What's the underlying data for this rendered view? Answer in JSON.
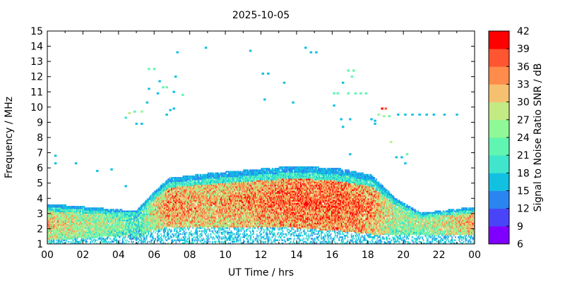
{
  "chart_data": {
    "type": "heatmap",
    "title": "2025-10-05",
    "xlabel": "UT Time / hrs",
    "ylabel": "Frequency / MHz",
    "xlim": [
      0,
      24
    ],
    "ylim": [
      1,
      15
    ],
    "x_ticks": [
      "00",
      "02",
      "04",
      "06",
      "08",
      "10",
      "12",
      "14",
      "16",
      "18",
      "20",
      "22",
      "00"
    ],
    "y_ticks": [
      "1",
      "2",
      "3",
      "4",
      "5",
      "6",
      "7",
      "8",
      "9",
      "10",
      "11",
      "12",
      "13",
      "14",
      "15"
    ],
    "colorbar": {
      "label": "Signal to Noise Ratio SNR / dB",
      "range": [
        6,
        42
      ],
      "ticks": [
        "6",
        "9",
        "12",
        "15",
        "18",
        "21",
        "24",
        "27",
        "30",
        "33",
        "36",
        "39",
        "42"
      ],
      "colors": [
        "#8000ff",
        "#4a44f9",
        "#2a85f0",
        "#12c0e2",
        "#3fe6cc",
        "#60f5b0",
        "#8ef996",
        "#c4ea84",
        "#f5c070",
        "#ff8c4a",
        "#ff5530",
        "#ff0000"
      ]
    },
    "band": {
      "description_hours": [
        0,
        4.2,
        5,
        5.8,
        6.8,
        9,
        12,
        14,
        16.5,
        18.2,
        19.5,
        21,
        24
      ],
      "upper_edge_mhz": [
        3.6,
        3.2,
        3.2,
        4.2,
        5.3,
        5.6,
        5.9,
        6.1,
        5.9,
        5.5,
        4.0,
        3.0,
        3.4
      ],
      "lower_edge_mhz": [
        1.2,
        1.5,
        1.2,
        1.8,
        2.1,
        2.0,
        2.1,
        2.0,
        1.8,
        1.6,
        1.6,
        1.6,
        1.5
      ],
      "peak_snr_db": [
        34,
        28,
        24,
        32,
        38,
        36,
        38,
        40,
        40,
        38,
        30,
        30,
        36
      ]
    },
    "scatter_points": [
      {
        "x": 0.45,
        "y": 6.8,
        "snr": 16
      },
      {
        "x": 0.45,
        "y": 6.3,
        "snr": 15
      },
      {
        "x": 1.6,
        "y": 6.3,
        "snr": 15
      },
      {
        "x": 2.8,
        "y": 5.8,
        "snr": 15
      },
      {
        "x": 3.6,
        "y": 5.9,
        "snr": 15
      },
      {
        "x": 4.4,
        "y": 4.8,
        "snr": 15
      },
      {
        "x": 4.4,
        "y": 9.3,
        "snr": 20
      },
      {
        "x": 4.6,
        "y": 9.6,
        "snr": 27
      },
      {
        "x": 4.9,
        "y": 9.7,
        "snr": 22
      },
      {
        "x": 5.3,
        "y": 9.7,
        "snr": 24
      },
      {
        "x": 5.0,
        "y": 8.9,
        "snr": 15
      },
      {
        "x": 5.3,
        "y": 8.9,
        "snr": 15
      },
      {
        "x": 5.6,
        "y": 10.3,
        "snr": 15
      },
      {
        "x": 5.7,
        "y": 11.2,
        "snr": 15
      },
      {
        "x": 5.7,
        "y": 12.5,
        "snr": 22
      },
      {
        "x": 6.0,
        "y": 12.5,
        "snr": 22
      },
      {
        "x": 6.2,
        "y": 10.9,
        "snr": 15
      },
      {
        "x": 6.3,
        "y": 11.7,
        "snr": 15
      },
      {
        "x": 6.5,
        "y": 11.3,
        "snr": 22
      },
      {
        "x": 6.7,
        "y": 11.3,
        "snr": 22
      },
      {
        "x": 6.7,
        "y": 9.5,
        "snr": 15
      },
      {
        "x": 6.9,
        "y": 9.8,
        "snr": 15
      },
      {
        "x": 7.1,
        "y": 9.9,
        "snr": 15
      },
      {
        "x": 7.2,
        "y": 12.0,
        "snr": 15
      },
      {
        "x": 7.1,
        "y": 11.0,
        "snr": 15
      },
      {
        "x": 7.3,
        "y": 13.6,
        "snr": 15
      },
      {
        "x": 7.6,
        "y": 10.8,
        "snr": 22
      },
      {
        "x": 8.9,
        "y": 13.9,
        "snr": 15
      },
      {
        "x": 11.4,
        "y": 13.7,
        "snr": 15
      },
      {
        "x": 12.1,
        "y": 12.2,
        "snr": 15
      },
      {
        "x": 12.4,
        "y": 12.2,
        "snr": 15
      },
      {
        "x": 12.2,
        "y": 10.5,
        "snr": 15
      },
      {
        "x": 13.3,
        "y": 11.6,
        "snr": 15
      },
      {
        "x": 13.8,
        "y": 10.3,
        "snr": 15
      },
      {
        "x": 14.5,
        "y": 13.9,
        "snr": 15
      },
      {
        "x": 14.8,
        "y": 13.6,
        "snr": 15
      },
      {
        "x": 15.1,
        "y": 13.6,
        "snr": 15
      },
      {
        "x": 16.1,
        "y": 10.9,
        "snr": 22
      },
      {
        "x": 16.3,
        "y": 10.9,
        "snr": 22
      },
      {
        "x": 16.1,
        "y": 10.1,
        "snr": 15
      },
      {
        "x": 16.5,
        "y": 9.2,
        "snr": 15
      },
      {
        "x": 16.6,
        "y": 8.7,
        "snr": 15
      },
      {
        "x": 16.6,
        "y": 11.6,
        "snr": 15
      },
      {
        "x": 16.9,
        "y": 12.4,
        "snr": 22
      },
      {
        "x": 17.2,
        "y": 12.4,
        "snr": 22
      },
      {
        "x": 17.1,
        "y": 12.0,
        "snr": 22
      },
      {
        "x": 16.9,
        "y": 10.9,
        "snr": 22
      },
      {
        "x": 17.3,
        "y": 10.9,
        "snr": 22
      },
      {
        "x": 17.6,
        "y": 10.9,
        "snr": 22
      },
      {
        "x": 17.9,
        "y": 10.9,
        "snr": 22
      },
      {
        "x": 17.0,
        "y": 9.2,
        "snr": 15
      },
      {
        "x": 17.0,
        "y": 6.9,
        "snr": 15
      },
      {
        "x": 18.2,
        "y": 9.2,
        "snr": 15
      },
      {
        "x": 18.4,
        "y": 9.1,
        "snr": 15
      },
      {
        "x": 18.6,
        "y": 9.5,
        "snr": 24
      },
      {
        "x": 18.8,
        "y": 9.9,
        "snr": 40
      },
      {
        "x": 19.0,
        "y": 9.9,
        "snr": 36
      },
      {
        "x": 18.9,
        "y": 9.4,
        "snr": 24
      },
      {
        "x": 19.2,
        "y": 9.4,
        "snr": 22
      },
      {
        "x": 18.4,
        "y": 8.9,
        "snr": 15
      },
      {
        "x": 19.3,
        "y": 7.7,
        "snr": 27
      },
      {
        "x": 19.6,
        "y": 6.7,
        "snr": 15
      },
      {
        "x": 19.9,
        "y": 6.7,
        "snr": 15
      },
      {
        "x": 20.2,
        "y": 6.9,
        "snr": 22
      },
      {
        "x": 20.1,
        "y": 6.3,
        "snr": 15
      },
      {
        "x": 19.7,
        "y": 9.5,
        "snr": 15
      },
      {
        "x": 20.1,
        "y": 9.5,
        "snr": 15
      },
      {
        "x": 20.5,
        "y": 9.5,
        "snr": 15
      },
      {
        "x": 20.9,
        "y": 9.5,
        "snr": 15
      },
      {
        "x": 21.3,
        "y": 9.5,
        "snr": 15
      },
      {
        "x": 21.7,
        "y": 9.5,
        "snr": 15
      },
      {
        "x": 22.3,
        "y": 9.5,
        "snr": 15
      },
      {
        "x": 23.0,
        "y": 9.5,
        "snr": 15
      }
    ]
  }
}
